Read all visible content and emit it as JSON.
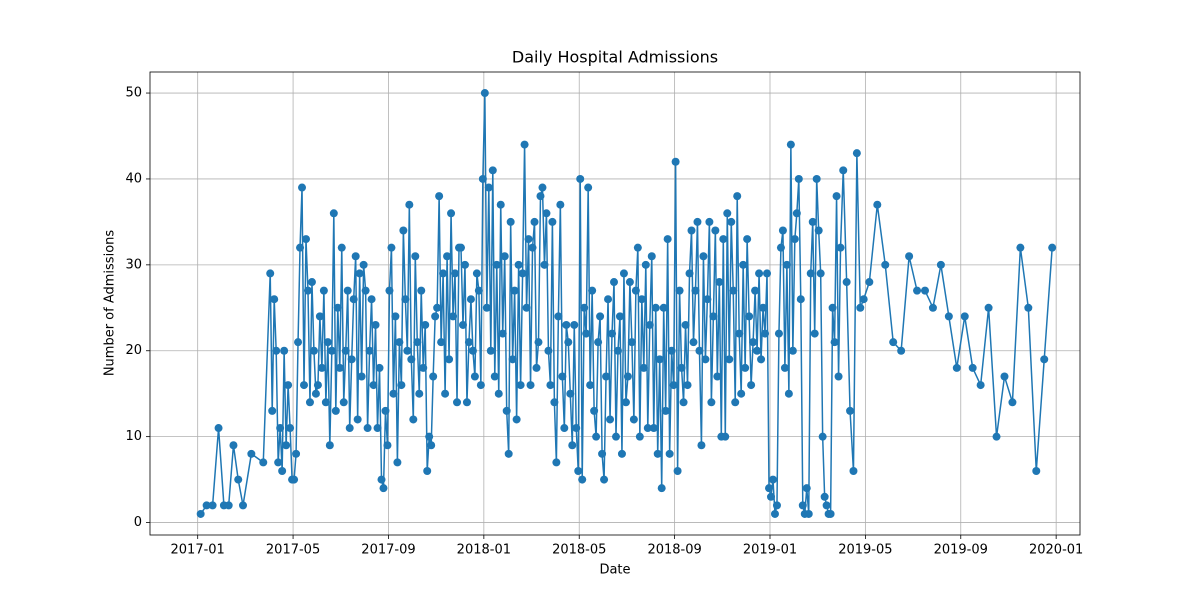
{
  "chart_data": {
    "type": "line",
    "title": "Daily Hospital Admissions",
    "x_label": "Date",
    "y_label": "Number of Admissions",
    "color": "#1f77b4",
    "grid": true,
    "markers": true,
    "xlim": [
      "2016-11",
      "2020-02"
    ],
    "xticks": [
      "2017-01",
      "2017-05",
      "2017-09",
      "2018-01",
      "2018-05",
      "2018-09",
      "2019-01",
      "2019-05",
      "2019-09",
      "2020-01"
    ],
    "ylim": [
      -1.45,
      52.45
    ],
    "yticks": [
      0,
      10,
      20,
      30,
      40,
      50
    ],
    "x": [
      "2017-01",
      "2017-01",
      "2017-01",
      "2017-01",
      "2017-02",
      "2017-02",
      "2017-02",
      "2017-02",
      "2017-02",
      "2017-03",
      "2017-03",
      "2017-04",
      "2017-04",
      "2017-04",
      "2017-04",
      "2017-04",
      "2017-04",
      "2017-04",
      "2017-04",
      "2017-04",
      "2017-04",
      "2017-04",
      "2017-04",
      "2017-05",
      "2017-05",
      "2017-05",
      "2017-05",
      "2017-05",
      "2017-05",
      "2017-05",
      "2017-05",
      "2017-05",
      "2017-05",
      "2017-05",
      "2017-05",
      "2017-06",
      "2017-06",
      "2017-06",
      "2017-06",
      "2017-06",
      "2017-06",
      "2017-06",
      "2017-06",
      "2017-06",
      "2017-06",
      "2017-06",
      "2017-06",
      "2017-07",
      "2017-07",
      "2017-07",
      "2017-07",
      "2017-07",
      "2017-07",
      "2017-07",
      "2017-07",
      "2017-07",
      "2017-07",
      "2017-07",
      "2017-07",
      "2017-08",
      "2017-08",
      "2017-08",
      "2017-08",
      "2017-08",
      "2017-08",
      "2017-08",
      "2017-08",
      "2017-08",
      "2017-08",
      "2017-08",
      "2017-08",
      "2017-09",
      "2017-09",
      "2017-09",
      "2017-09",
      "2017-09",
      "2017-09",
      "2017-09",
      "2017-09",
      "2017-09",
      "2017-09",
      "2017-09",
      "2017-09",
      "2017-10",
      "2017-10",
      "2017-10",
      "2017-10",
      "2017-10",
      "2017-10",
      "2017-10",
      "2017-10",
      "2017-10",
      "2017-10",
      "2017-10",
      "2017-10",
      "2017-11",
      "2017-11",
      "2017-11",
      "2017-11",
      "2017-11",
      "2017-11",
      "2017-11",
      "2017-11",
      "2017-11",
      "2017-11",
      "2017-11",
      "2017-11",
      "2017-12",
      "2017-12",
      "2017-12",
      "2017-12",
      "2017-12",
      "2017-12",
      "2017-12",
      "2017-12",
      "2017-12",
      "2017-12",
      "2017-12",
      "2017-12",
      "2018-01",
      "2018-01",
      "2018-01",
      "2018-01",
      "2018-01",
      "2018-01",
      "2018-01",
      "2018-01",
      "2018-01",
      "2018-01",
      "2018-01",
      "2018-01",
      "2018-02",
      "2018-02",
      "2018-02",
      "2018-02",
      "2018-02",
      "2018-02",
      "2018-02",
      "2018-02",
      "2018-02",
      "2018-02",
      "2018-02",
      "2018-02",
      "2018-03",
      "2018-03",
      "2018-03",
      "2018-03",
      "2018-03",
      "2018-03",
      "2018-03",
      "2018-03",
      "2018-03",
      "2018-03",
      "2018-03",
      "2018-03",
      "2018-04",
      "2018-04",
      "2018-04",
      "2018-04",
      "2018-04",
      "2018-04",
      "2018-04",
      "2018-04",
      "2018-04",
      "2018-04",
      "2018-04",
      "2018-04",
      "2018-05",
      "2018-05",
      "2018-05",
      "2018-05",
      "2018-05",
      "2018-05",
      "2018-05",
      "2018-05",
      "2018-05",
      "2018-05",
      "2018-05",
      "2018-05",
      "2018-06",
      "2018-06",
      "2018-06",
      "2018-06",
      "2018-06",
      "2018-06",
      "2018-06",
      "2018-06",
      "2018-06",
      "2018-06",
      "2018-06",
      "2018-06",
      "2018-07",
      "2018-07",
      "2018-07",
      "2018-07",
      "2018-07",
      "2018-07",
      "2018-07",
      "2018-07",
      "2018-07",
      "2018-07",
      "2018-07",
      "2018-07",
      "2018-08",
      "2018-08",
      "2018-08",
      "2018-08",
      "2018-08",
      "2018-08",
      "2018-08",
      "2018-08",
      "2018-08",
      "2018-08",
      "2018-08",
      "2018-08",
      "2018-09",
      "2018-09",
      "2018-09",
      "2018-09",
      "2018-09",
      "2018-09",
      "2018-09",
      "2018-09",
      "2018-09",
      "2018-09",
      "2018-09",
      "2018-09",
      "2018-10",
      "2018-10",
      "2018-10",
      "2018-10",
      "2018-10",
      "2018-10",
      "2018-10",
      "2018-10",
      "2018-10",
      "2018-10",
      "2018-10",
      "2018-10",
      "2018-11",
      "2018-11",
      "2018-11",
      "2018-11",
      "2018-11",
      "2018-11",
      "2018-11",
      "2018-11",
      "2018-11",
      "2018-11",
      "2018-11",
      "2018-11",
      "2018-12",
      "2018-12",
      "2018-12",
      "2018-12",
      "2018-12",
      "2018-12",
      "2018-12",
      "2018-12",
      "2018-12",
      "2018-12",
      "2018-12",
      "2018-12",
      "2019-01",
      "2019-01",
      "2019-01",
      "2019-01",
      "2019-01",
      "2019-01",
      "2019-01",
      "2019-01",
      "2019-01",
      "2019-01",
      "2019-01",
      "2019-01",
      "2019-02",
      "2019-02",
      "2019-02",
      "2019-02",
      "2019-02",
      "2019-02",
      "2019-02",
      "2019-02",
      "2019-02",
      "2019-02",
      "2019-02",
      "2019-02",
      "2019-03",
      "2019-03",
      "2019-03",
      "2019-03",
      "2019-03",
      "2019-03",
      "2019-03",
      "2019-03",
      "2019-03",
      "2019-03",
      "2019-03",
      "2019-03",
      "2019-04",
      "2019-04",
      "2019-04",
      "2019-04",
      "2019-04",
      "2019-04",
      "2019-04",
      "2019-05",
      "2019-05",
      "2019-05",
      "2019-06",
      "2019-06",
      "2019-06",
      "2019-07",
      "2019-07",
      "2019-07",
      "2019-08",
      "2019-08",
      "2019-08",
      "2019-09",
      "2019-09",
      "2019-09",
      "2019-10",
      "2019-10",
      "2019-10",
      "2019-11",
      "2019-11",
      "2019-11",
      "2019-12",
      "2019-12",
      "2019-12"
    ],
    "values": [
      1,
      2,
      2,
      11,
      2,
      2,
      9,
      5,
      2,
      8,
      7,
      29,
      13,
      26,
      20,
      7,
      11,
      6,
      20,
      9,
      16,
      11,
      5,
      5,
      8,
      21,
      32,
      39,
      16,
      33,
      27,
      14,
      28,
      20,
      15,
      16,
      24,
      18,
      27,
      14,
      21,
      9,
      20,
      36,
      13,
      25,
      18,
      32,
      14,
      20,
      27,
      11,
      19,
      26,
      31,
      12,
      29,
      17,
      30,
      27,
      11,
      20,
      26,
      16,
      23,
      11,
      18,
      5,
      4,
      13,
      9,
      27,
      32,
      15,
      24,
      7,
      21,
      16,
      34,
      26,
      20,
      37,
      19,
      12,
      31,
      21,
      15,
      27,
      18,
      23,
      6,
      10,
      9,
      17,
      24,
      25,
      38,
      21,
      29,
      15,
      31,
      19,
      36,
      24,
      29,
      14,
      32,
      32,
      23,
      30,
      14,
      21,
      26,
      20,
      17,
      29,
      27,
      16,
      40,
      50,
      25,
      39,
      20,
      41,
      17,
      30,
      15,
      37,
      22,
      31,
      13,
      8,
      35,
      19,
      27,
      12,
      30,
      16,
      29,
      44,
      25,
      33,
      16,
      32,
      35,
      18,
      21,
      38,
      39,
      30,
      36,
      20,
      16,
      35,
      14,
      7,
      24,
      37,
      17,
      11,
      23,
      21,
      15,
      9,
      23,
      11,
      6,
      40,
      5,
      25,
      22,
      39,
      16,
      27,
      13,
      10,
      21,
      24,
      8,
      5,
      17,
      26,
      12,
      22,
      28,
      10,
      20,
      24,
      8,
      29,
      14,
      17,
      28,
      21,
      12,
      27,
      32,
      10,
      26,
      18,
      30,
      11,
      23,
      31,
      11,
      25,
      8,
      19,
      4,
      25,
      13,
      33,
      8,
      20,
      16,
      42,
      6,
      27,
      18,
      14,
      23,
      16,
      29,
      34,
      21,
      27,
      35,
      20,
      9,
      31,
      19,
      26,
      35,
      14,
      24,
      34,
      17,
      28,
      10,
      33,
      10,
      36,
      19,
      35,
      27,
      14,
      38,
      22,
      15,
      30,
      18,
      33,
      24,
      16,
      21,
      27,
      20,
      29,
      19,
      25,
      22,
      29,
      4,
      3,
      5,
      1,
      2,
      22,
      32,
      34,
      18,
      30,
      15,
      44,
      20,
      33,
      36,
      40,
      26,
      2,
      1,
      4,
      1,
      29,
      35,
      22,
      40,
      34,
      29,
      10,
      3,
      2,
      1,
      1,
      25,
      21,
      38,
      17,
      32,
      41,
      28,
      13,
      6,
      43,
      25,
      26,
      28,
      37,
      30,
      21,
      20,
      31,
      27,
      27,
      25,
      30,
      24,
      18,
      24,
      18,
      16,
      25,
      10,
      17,
      14,
      32,
      25,
      6,
      19,
      32
    ]
  }
}
